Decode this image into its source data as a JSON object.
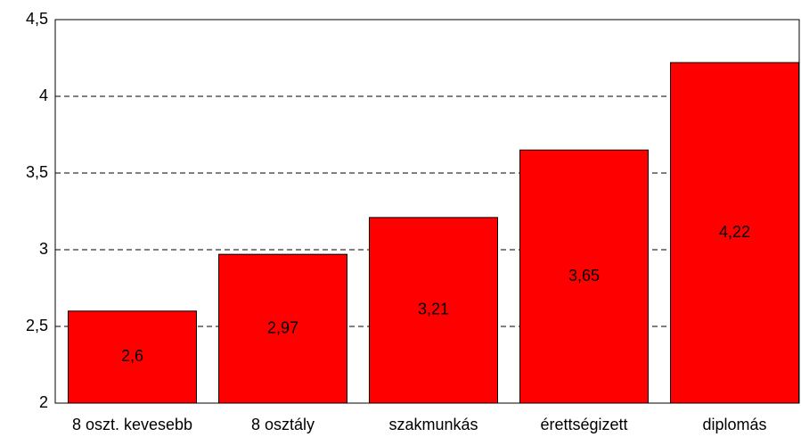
{
  "chart_data": {
    "type": "bar",
    "categories": [
      "8 oszt. kevesebb",
      "8 osztály",
      "szakmunkás",
      "érettségizett",
      "diplomás"
    ],
    "values": [
      2.6,
      2.97,
      3.21,
      3.65,
      4.22
    ],
    "value_labels": [
      "2,6",
      "2,97",
      "3,21",
      "3,65",
      "4,22"
    ],
    "color": "#ff0000",
    "ylim": [
      2,
      4.5
    ],
    "yticks": [
      2,
      {
        "value": 2.5,
        "label": "2,5"
      },
      3,
      {
        "value": 3.5,
        "label": "3,5"
      },
      4,
      {
        "value": 4.5,
        "label": "4,5"
      }
    ],
    "grid": true
  }
}
